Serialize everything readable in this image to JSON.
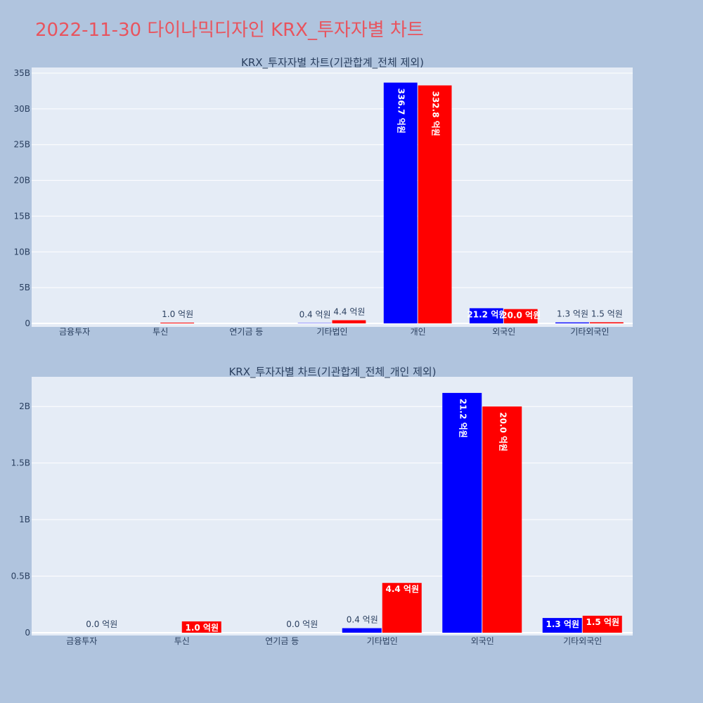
{
  "page": {
    "title": "2022-11-30 다이나믹디자인 KRX_투자자별 차트",
    "title_color": "#e8545e",
    "background": "#b0c4de",
    "plot_background": "#e5ecf6",
    "grid_color": "#ffffff"
  },
  "chart_data": [
    {
      "type": "bar",
      "title": "KRX_투자자별 차트(기관합계_전체 제외)",
      "categories": [
        "금융투자",
        "투신",
        "연기금 등",
        "기타법인",
        "개인",
        "외국인",
        "기타외국인"
      ],
      "ylim": [
        0,
        35000000000
      ],
      "yticks": [
        {
          "value": 0,
          "label": "0"
        },
        {
          "value": 5000000000,
          "label": "5B"
        },
        {
          "value": 10000000000,
          "label": "10B"
        },
        {
          "value": 15000000000,
          "label": "15B"
        },
        {
          "value": 20000000000,
          "label": "20B"
        },
        {
          "value": 25000000000,
          "label": "25B"
        },
        {
          "value": 30000000000,
          "label": "30B"
        },
        {
          "value": 35000000000,
          "label": "35B"
        }
      ],
      "series": [
        {
          "color": "#0000ff",
          "values": [
            0,
            0,
            0,
            40000000,
            33670000000,
            2120000000,
            130000000
          ],
          "labels": [
            "",
            "",
            "",
            "0.4 억원",
            "336.7 억원",
            "21.2 억원",
            "1.3 억원"
          ]
        },
        {
          "color": "#ff0000",
          "values": [
            0,
            100000000,
            0,
            440000000,
            33280000000,
            2000000000,
            150000000
          ],
          "labels": [
            "",
            "1.0 억원",
            "",
            "4.4 억원",
            "332.8 억원",
            "20.0 억원",
            "1.5 억원"
          ]
        }
      ],
      "grid": true
    },
    {
      "type": "bar",
      "title": "KRX_투자자별 차트(기관합계_전체_개인 제외)",
      "categories": [
        "금융투자",
        "투신",
        "연기금 등",
        "기타법인",
        "외국인",
        "기타외국인"
      ],
      "ylim": [
        0,
        2250000000
      ],
      "yticks": [
        {
          "value": 0,
          "label": "0"
        },
        {
          "value": 500000000,
          "label": "0.5B"
        },
        {
          "value": 1000000000,
          "label": "1B"
        },
        {
          "value": 1500000000,
          "label": "1.5B"
        },
        {
          "value": 2000000000,
          "label": "2B"
        }
      ],
      "series": [
        {
          "color": "#0000ff",
          "values": [
            0,
            0,
            0,
            40000000,
            2120000000,
            130000000
          ],
          "labels": [
            "",
            "",
            "",
            "0.4 억원",
            "21.2 억원",
            "1.3 억원"
          ]
        },
        {
          "color": "#ff0000",
          "values": [
            0,
            100000000,
            0,
            440000000,
            2000000000,
            150000000
          ],
          "labels": [
            "0.0 억원",
            "1.0 억원",
            "0.0 억원",
            "4.4 억원",
            "20.0 억원",
            "1.5 억원"
          ]
        }
      ],
      "grid": true
    }
  ]
}
